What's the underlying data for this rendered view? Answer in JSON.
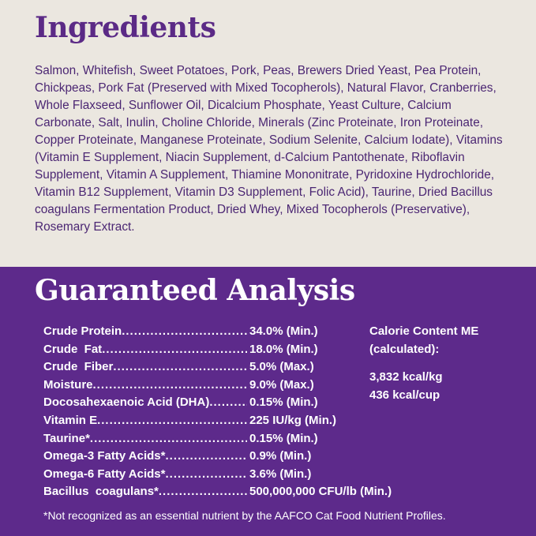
{
  "ingredients": {
    "title": "Ingredients",
    "text": "Salmon, Whitefish, Sweet Potatoes, Pork, Peas, Brewers Dried Yeast, Pea Protein, Chickpeas, Pork Fat (Preserved with Mixed Tocopherols), Natural Flavor, Cranberries, Whole Flaxseed, Sunflower Oil, Dicalcium Phosphate, Yeast Culture, Calcium Carbonate, Salt, Inulin, Choline Chloride, Minerals (Zinc Proteinate, Iron Proteinate, Copper Proteinate, Manganese Proteinate, Sodium Selenite, Calcium Iodate), Vitamins (Vitamin E Supplement, Niacin Supplement, d-Calcium Pantothenate, Riboflavin Supplement, Vitamin A Supplement, Thiamine Mononitrate, Pyridoxine Hydrochloride, Vitamin B12 Supplement, Vitamin D3 Supplement, Folic Acid), Taurine, Dried Bacillus coagulans Fermentation Product, Dried Whey, Mixed Tocopherols (Preservative), Rosemary Extract."
  },
  "analysis": {
    "title": "Guaranteed Analysis",
    "rows": [
      {
        "label": "Crude Protein",
        "value": "34.0% (Min.)"
      },
      {
        "label": "Crude  Fat",
        "value": "18.0% (Min.)"
      },
      {
        "label": "Crude  Fiber",
        "value": "5.0% (Max.)"
      },
      {
        "label": "Moisture",
        "value": "9.0% (Max.)"
      },
      {
        "label": "Docosahexaenoic Acid (DHA)",
        "value": "0.15% (Min.)"
      },
      {
        "label": "Vitamin E",
        "value": "225 IU/kg (Min.)"
      },
      {
        "label": "Taurine*",
        "value": "0.15% (Min.)"
      },
      {
        "label": "Omega-3 Fatty Acids*",
        "value": "0.9% (Min.)"
      },
      {
        "label": "Omega-6 Fatty Acids*",
        "value": "3.6% (Min.)"
      },
      {
        "label": "Bacillus  coagulans*",
        "value": "500,000,000 CFU/lb (Min.)"
      }
    ],
    "calorie": {
      "heading1": "Calorie Content ME",
      "heading2": "(calculated):",
      "per_kg": "3,832 kcal/kg",
      "per_cup": "436 kcal/cup"
    },
    "footnote": "*Not recognized as an essential nutrient by the AAFCO Cat Food Nutrient Profiles."
  },
  "colors": {
    "beige": "#ebe7e0",
    "purple": "#5d2a8b",
    "title_purple": "#5b2a86"
  }
}
